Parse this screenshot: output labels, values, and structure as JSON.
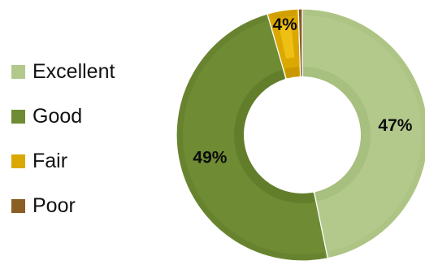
{
  "chart_data": {
    "type": "pie",
    "variant": "doughnut",
    "title": "",
    "legend_position": "left",
    "categories": [
      "Excellent",
      "Good",
      "Fair",
      "Poor"
    ],
    "values": [
      47,
      49,
      4,
      0.5
    ],
    "data_labels": [
      "47%",
      "49%",
      "4%",
      ""
    ],
    "colors": [
      "#b3c98c",
      "#6f8b33",
      "#dba800",
      "#8b5e26"
    ],
    "inner_colors": [
      "#a7bf7f",
      "#637e2b",
      "#c99800",
      "#7a5221"
    ],
    "highlight_colors": [
      "",
      "",
      "#f2c417",
      ""
    ],
    "start_angle_deg": 0,
    "direction": "clockwise"
  }
}
